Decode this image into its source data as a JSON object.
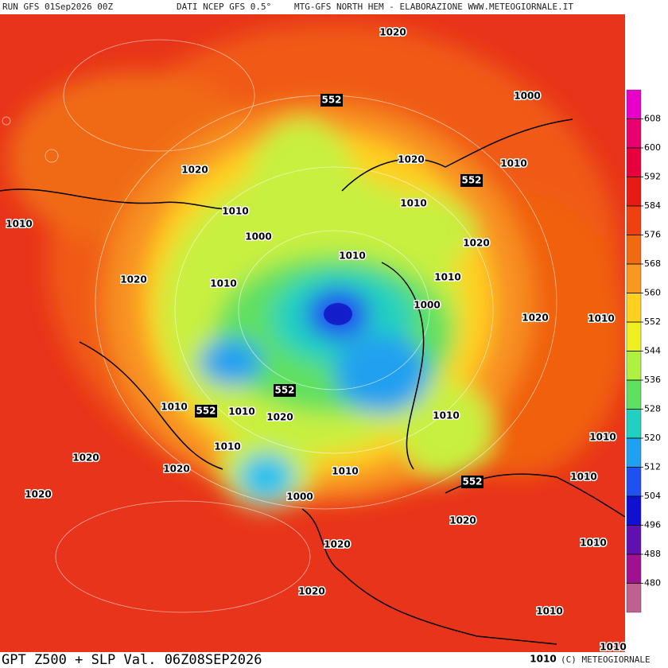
{
  "header": {
    "run": "RUN GFS 01Sep2026 00Z",
    "source": "DATI NCEP GFS 0.5°",
    "product": "MTG-GFS NORTH HEM - ELABORAZIONE WWW.METEOGIORNALE.IT"
  },
  "footer": {
    "title": "GPT Z500 + SLP Val. 06Z08SEP2026",
    "copyright": "(C) METEOGIORNALE"
  },
  "colorbar": {
    "ticks": [
      608,
      600,
      592,
      584,
      576,
      568,
      560,
      552,
      544,
      536,
      528,
      520,
      512,
      504,
      496,
      488,
      480
    ],
    "colors": [
      "#e800c8",
      "#e8006e",
      "#e8003c",
      "#e81a14",
      "#f04010",
      "#f06a10",
      "#f89820",
      "#ffd020",
      "#f0f020",
      "#b0f040",
      "#60e060",
      "#20d0c0",
      "#20a0f0",
      "#2050f0",
      "#1010d0",
      "#6010b0",
      "#a01090",
      "#c06090"
    ]
  },
  "isobar_labels": [
    "1020",
    "1000",
    "1020",
    "1020",
    "1010",
    "1010",
    "1010",
    "1010",
    "1000",
    "1020",
    "1010",
    "1020",
    "1010",
    "1010",
    "1000",
    "1020",
    "1010",
    "1010",
    "1010",
    "1020",
    "1010",
    "1010",
    "1010",
    "1020",
    "1020",
    "1010",
    "1010",
    "1020",
    "1000",
    "1020",
    "1020",
    "1010",
    "1020",
    "1010",
    "1010",
    "1010"
  ],
  "height_labels": [
    "552",
    "552",
    "552",
    "552",
    "552"
  ]
}
